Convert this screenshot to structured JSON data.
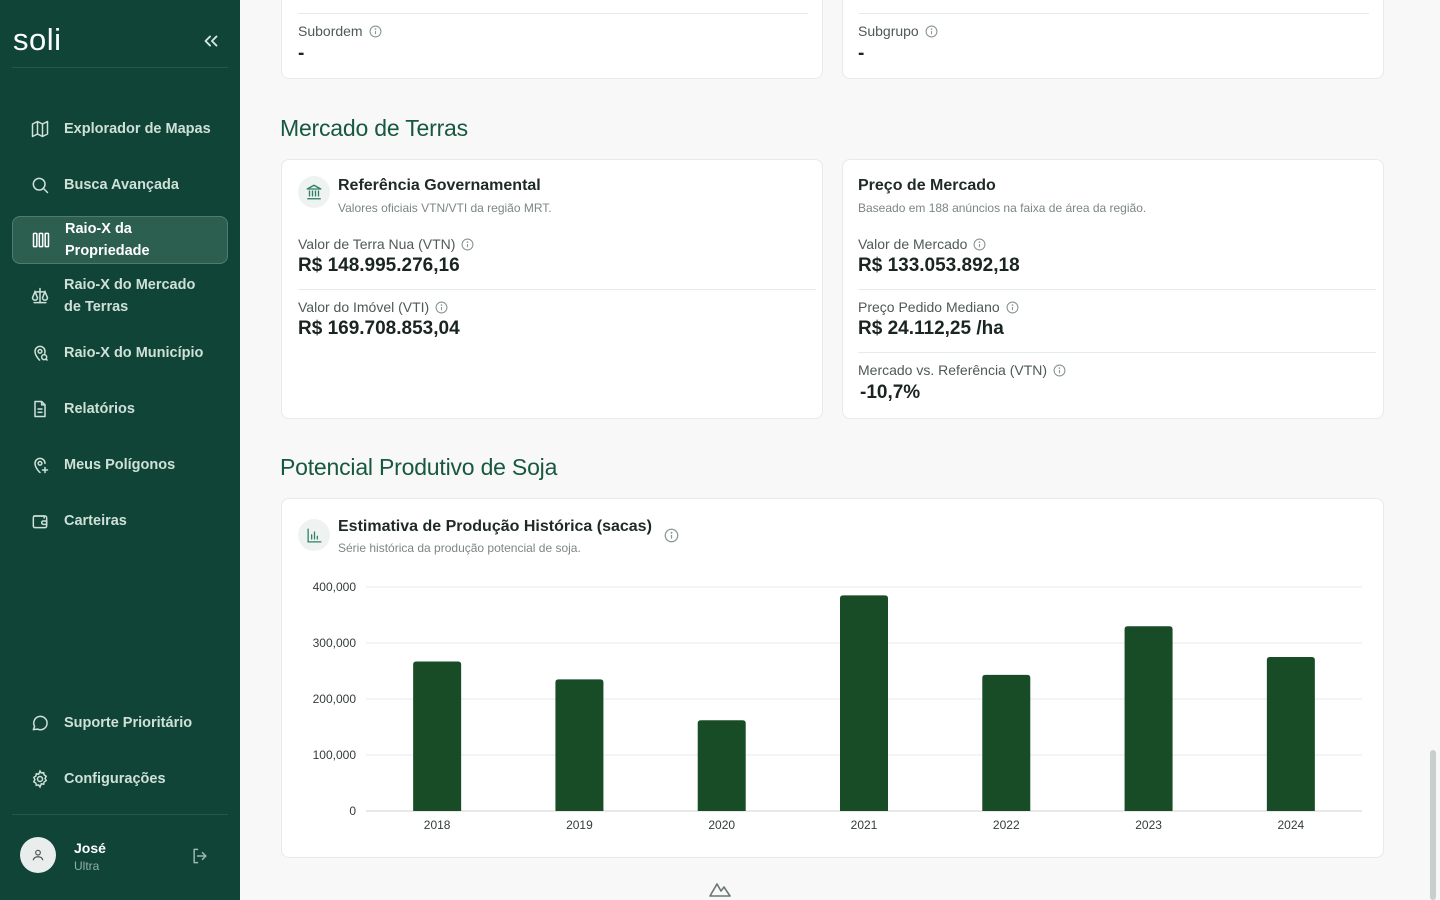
{
  "sidebar": {
    "brand": "soli",
    "items": [
      {
        "label": "Explorador de Mapas",
        "icon": "map-icon"
      },
      {
        "label": "Busca Avançada",
        "icon": "search-icon"
      },
      {
        "label": "Raio-X da Propriedade",
        "icon": "bars-icon",
        "active": true
      },
      {
        "label": "Raio-X do Mercado de Terras",
        "icon": "scale-icon"
      },
      {
        "label": "Raio-X do Município",
        "icon": "map-pin-icon"
      },
      {
        "label": "Relatórios",
        "icon": "document-icon"
      },
      {
        "label": "Meus Polígonos",
        "icon": "map-pin-plus-icon"
      },
      {
        "label": "Carteiras",
        "icon": "wallet-icon"
      }
    ],
    "bottom_items": [
      {
        "label": "Suporte Prioritário",
        "icon": "chat-icon"
      },
      {
        "label": "Configurações",
        "icon": "gear-icon"
      }
    ],
    "user": {
      "name": "José",
      "plan": "Ultra"
    }
  },
  "top_fields": {
    "left": {
      "label": "Subordem",
      "value": "-"
    },
    "right": {
      "label": "Subgrupo",
      "value": "-"
    }
  },
  "land_market": {
    "section_title": "Mercado de Terras",
    "gov_ref": {
      "title": "Referência Governamental",
      "subtitle": "Valores oficiais VTN/VTI da região MRT.",
      "vtn_label": "Valor de Terra Nua (VTN)",
      "vtn_value": "R$ 148.995.276,16",
      "vti_label": "Valor do Imóvel (VTI)",
      "vti_value": "R$ 169.708.853,04"
    },
    "market": {
      "title": "Preço de Mercado",
      "subtitle": "Baseado em 188 anúncios na faixa de área da região.",
      "value_label": "Valor de Mercado",
      "value": "R$ 133.053.892,18",
      "median_label": "Preço Pedido Mediano",
      "median_value": "R$ 24.112,25 /ha",
      "vs_label": "Mercado vs. Referência (VTN)",
      "vs_value": "-10,7%"
    }
  },
  "soy": {
    "section_title": "Potencial Produtivo de Soja",
    "chart_title": "Estimativa de Produção Histórica (sacas)",
    "chart_subtitle": "Série histórica da produção potencial de soja."
  },
  "colors": {
    "sidebar": "#0f4436",
    "accent": "#17583f",
    "bar": "#174c26"
  },
  "chart_data": {
    "type": "bar",
    "categories": [
      "2018",
      "2019",
      "2020",
      "2021",
      "2022",
      "2023",
      "2024"
    ],
    "values": [
      267000,
      235000,
      162000,
      385000,
      243000,
      330000,
      275000
    ],
    "ylim": [
      0,
      400000
    ],
    "yticks": [
      "0",
      "100,000",
      "200,000",
      "300,000",
      "400,000"
    ],
    "grid": true
  }
}
